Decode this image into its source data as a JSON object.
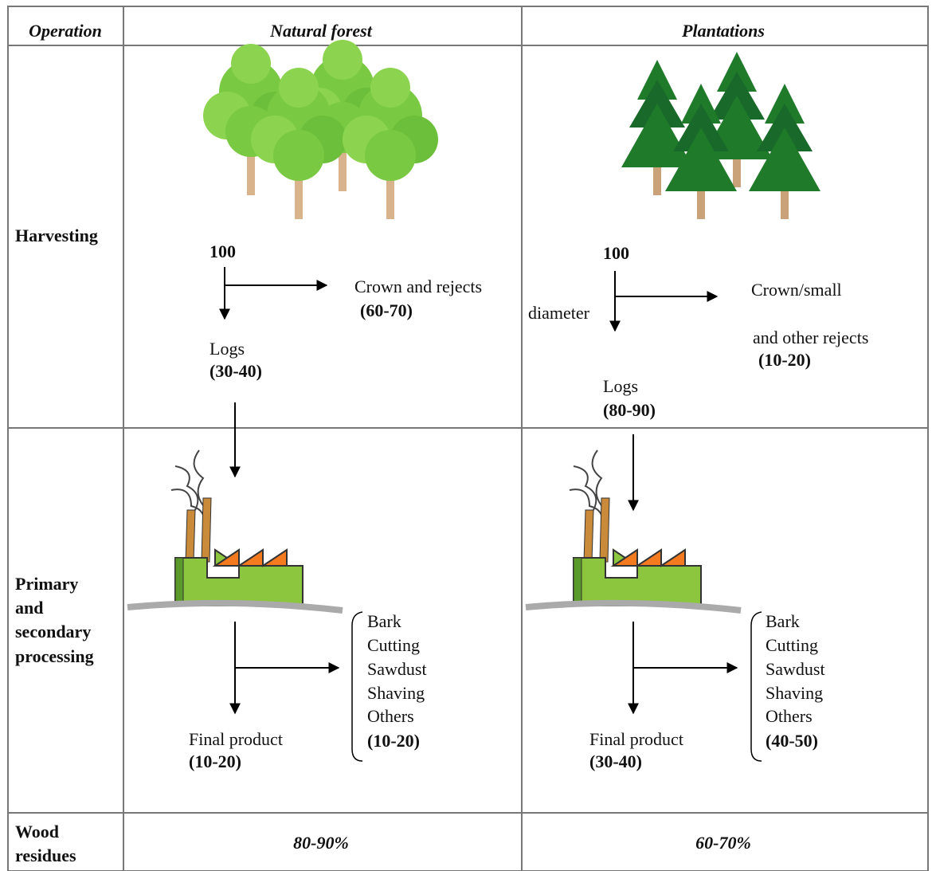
{
  "table": {
    "header": [
      "Operation",
      "Natural forest",
      "Plantations"
    ],
    "rows": [
      {
        "label": [
          "Harvesting"
        ],
        "natural": {
          "input": "100",
          "rejects": [
            "Crown and rejects",
            "(60-70)"
          ],
          "logs": [
            "Logs",
            "(30-40)"
          ]
        },
        "plantations": {
          "input": "100",
          "note": "diameter",
          "rejects": [
            "Crown/small",
            "and other rejects",
            "(10-20)"
          ],
          "logs": [
            "Logs",
            "(80-90)"
          ]
        }
      },
      {
        "label": [
          "Primary",
          "and",
          "secondary",
          "processing"
        ],
        "natural": {
          "residues": [
            "Bark",
            "Cutting",
            "Sawdust",
            "Shaving",
            "Others",
            "(10-20)"
          ],
          "product": [
            "Final product",
            "(10-20)"
          ]
        },
        "plantations": {
          "residues": [
            "Bark",
            "Cutting",
            "Sawdust",
            "Shaving",
            "Others",
            "(40-50)"
          ],
          "product": [
            "Final product",
            "(30-40)"
          ]
        }
      },
      {
        "label": [
          "Wood",
          "residues"
        ],
        "natural": "80-90%",
        "plantations": "60-70%"
      }
    ]
  }
}
